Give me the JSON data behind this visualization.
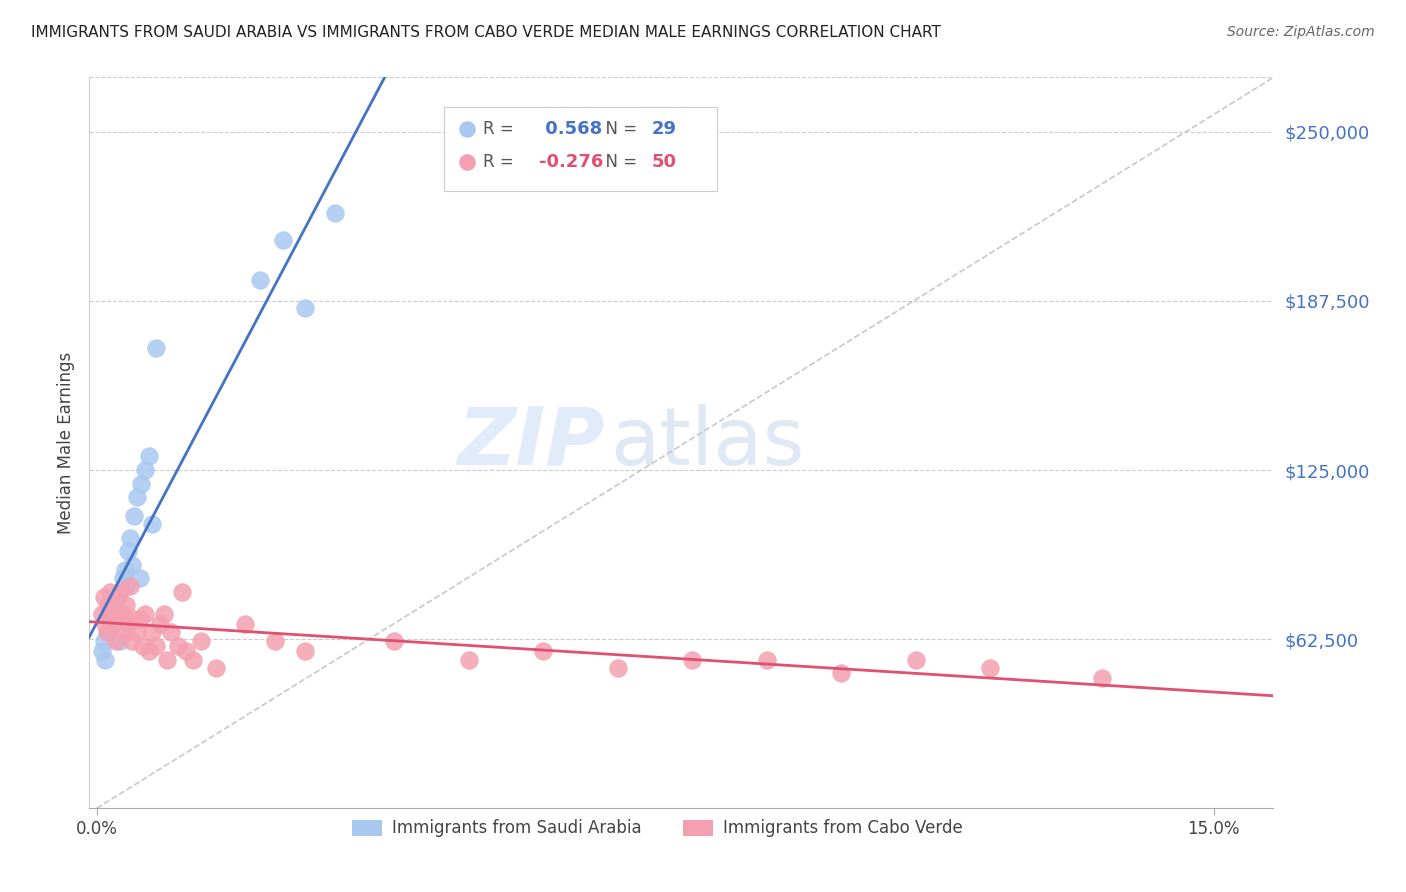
{
  "title": "IMMIGRANTS FROM SAUDI ARABIA VS IMMIGRANTS FROM CABO VERDE MEDIAN MALE EARNINGS CORRELATION CHART",
  "source": "Source: ZipAtlas.com",
  "ylabel": "Median Male Earnings",
  "ytick_labels": [
    "$62,500",
    "$125,000",
    "$187,500",
    "$250,000"
  ],
  "ytick_values": [
    62500,
    125000,
    187500,
    250000
  ],
  "ymin": 0,
  "ymax": 270000,
  "xmin": -0.001,
  "xmax": 0.158,
  "watermark_zip": "ZIP",
  "watermark_atlas": "atlas",
  "saudi_R": 0.568,
  "saudi_N": 29,
  "cabo_R": -0.276,
  "cabo_N": 50,
  "saudi_color": "#A8C8F0",
  "cabo_color": "#F4A0B0",
  "saudi_line_color": "#4472C4",
  "cabo_line_color": "#E05070",
  "dashed_line_color": "#BBBBBB",
  "saudi_x": [
    0.0008,
    0.001,
    0.0012,
    0.0015,
    0.0018,
    0.002,
    0.0022,
    0.0025,
    0.0028,
    0.003,
    0.0032,
    0.0035,
    0.0038,
    0.004,
    0.0042,
    0.0045,
    0.0048,
    0.005,
    0.0055,
    0.0058,
    0.006,
    0.0065,
    0.007,
    0.0075,
    0.008,
    0.022,
    0.025,
    0.028,
    0.032
  ],
  "saudi_y": [
    58000,
    62000,
    55000,
    65000,
    70000,
    68000,
    72000,
    75000,
    78000,
    80000,
    62000,
    85000,
    88000,
    82000,
    95000,
    100000,
    90000,
    108000,
    115000,
    85000,
    120000,
    125000,
    130000,
    105000,
    170000,
    195000,
    210000,
    185000,
    220000
  ],
  "cabo_x": [
    0.0008,
    0.001,
    0.0012,
    0.0014,
    0.0016,
    0.0018,
    0.002,
    0.0022,
    0.0024,
    0.0026,
    0.0028,
    0.003,
    0.0032,
    0.0035,
    0.0038,
    0.004,
    0.0042,
    0.0045,
    0.0048,
    0.005,
    0.0055,
    0.0058,
    0.0062,
    0.0065,
    0.007,
    0.0075,
    0.008,
    0.0085,
    0.009,
    0.0095,
    0.01,
    0.011,
    0.0115,
    0.012,
    0.013,
    0.014,
    0.016,
    0.02,
    0.024,
    0.028,
    0.04,
    0.05,
    0.06,
    0.07,
    0.08,
    0.09,
    0.1,
    0.11,
    0.12,
    0.135
  ],
  "cabo_y": [
    72000,
    78000,
    68000,
    65000,
    75000,
    80000,
    72000,
    68000,
    75000,
    62000,
    78000,
    70000,
    80000,
    72000,
    65000,
    75000,
    68000,
    82000,
    62000,
    70000,
    65000,
    70000,
    60000,
    72000,
    58000,
    65000,
    60000,
    68000,
    72000,
    55000,
    65000,
    60000,
    80000,
    58000,
    55000,
    62000,
    52000,
    68000,
    62000,
    58000,
    62000,
    55000,
    58000,
    52000,
    55000,
    55000,
    50000,
    55000,
    52000,
    48000
  ]
}
